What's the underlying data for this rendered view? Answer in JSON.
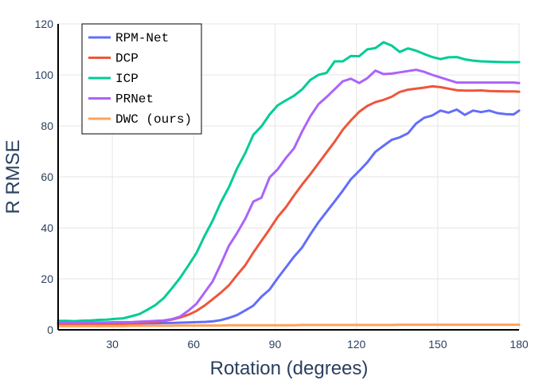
{
  "chart_data": {
    "type": "line",
    "xlabel": "Rotation (degrees)",
    "ylabel": "R RMSE",
    "xlim": [
      10,
      180
    ],
    "ylim": [
      0,
      120
    ],
    "xticks": [
      30,
      60,
      90,
      120,
      150,
      180
    ],
    "yticks": [
      0,
      20,
      40,
      60,
      80,
      100,
      120
    ],
    "grid": true,
    "legend_position": "top-left",
    "x": [
      10,
      13,
      16,
      19,
      22,
      25,
      28,
      31,
      34,
      37,
      40,
      43,
      46,
      49,
      52,
      55,
      58,
      61,
      64,
      67,
      70,
      73,
      76,
      79,
      82,
      85,
      88,
      91,
      94,
      97,
      100,
      103,
      106,
      109,
      112,
      115,
      118,
      121,
      124,
      127,
      130,
      133,
      136,
      139,
      142,
      145,
      148,
      151,
      154,
      157,
      160,
      163,
      166,
      169,
      172,
      175,
      178,
      180
    ],
    "series": [
      {
        "name": "RPM-Net",
        "color": "#636efa",
        "values": [
          2.5,
          2.4,
          2.4,
          2.4,
          2.4,
          2.4,
          2.5,
          2.5,
          2.5,
          2.5,
          2.5,
          2.6,
          2.6,
          2.7,
          2.7,
          2.8,
          2.9,
          3.0,
          3.1,
          3.3,
          3.8,
          4.7,
          5.8,
          7.6,
          9.5,
          13.0,
          15.8,
          20.3,
          24.5,
          28.7,
          32.3,
          37.4,
          42.2,
          46.3,
          50.4,
          54.6,
          59.1,
          62.3,
          65.7,
          69.8,
          72.2,
          74.5,
          75.5,
          77.1,
          80.9,
          83.2,
          84.1,
          86.0,
          85.2,
          86.4,
          84.3,
          86.0,
          85.4,
          86.0,
          85.0,
          84.6,
          84.5,
          86.0
        ]
      },
      {
        "name": "DCP",
        "color": "#ef553b",
        "values": [
          2.2,
          2.2,
          2.2,
          2.2,
          2.2,
          2.2,
          2.3,
          2.3,
          2.3,
          2.4,
          2.5,
          2.8,
          3.2,
          3.5,
          4.0,
          4.8,
          5.9,
          7.4,
          9.5,
          12.0,
          14.6,
          17.5,
          21.5,
          25.3,
          30.3,
          34.9,
          39.5,
          44.3,
          48.1,
          52.7,
          57.0,
          61.0,
          65.3,
          69.6,
          73.8,
          78.5,
          82.2,
          85.5,
          87.8,
          89.3,
          90.2,
          91.4,
          93.3,
          94.2,
          94.6,
          95.0,
          95.5,
          95.2,
          94.6,
          94.0,
          93.8,
          93.8,
          93.9,
          93.7,
          93.6,
          93.5,
          93.5,
          93.4
        ]
      },
      {
        "name": "ICP",
        "color": "#00cc96",
        "values": [
          3.5,
          3.5,
          3.4,
          3.6,
          3.7,
          3.9,
          4.0,
          4.3,
          4.5,
          5.3,
          6.2,
          7.9,
          9.8,
          12.5,
          16.3,
          20.4,
          25.2,
          30.1,
          36.8,
          42.8,
          50.0,
          56.0,
          63.3,
          69.3,
          76.5,
          79.8,
          84.5,
          88.1,
          90.0,
          91.8,
          94.3,
          98.0,
          100.0,
          100.8,
          105.3,
          105.3,
          107.4,
          107.3,
          110.0,
          110.5,
          112.8,
          111.5,
          109.0,
          110.4,
          109.5,
          108.2,
          107.0,
          106.2,
          106.9,
          107.0,
          106.1,
          105.6,
          105.3,
          105.2,
          105.1,
          105.0,
          105.0,
          105.0
        ]
      },
      {
        "name": "PRNet",
        "color": "#ab63fa",
        "values": [
          2.8,
          2.8,
          2.8,
          2.8,
          2.8,
          2.9,
          2.9,
          3.0,
          3.0,
          3.0,
          3.2,
          3.3,
          3.5,
          3.7,
          4.2,
          5.2,
          7.5,
          10.2,
          14.6,
          19.0,
          25.8,
          33.0,
          38.0,
          43.5,
          50.3,
          51.8,
          59.8,
          63.0,
          67.4,
          71.2,
          77.8,
          83.7,
          88.5,
          91.3,
          94.4,
          97.5,
          98.5,
          96.8,
          98.7,
          101.7,
          100.3,
          100.5,
          101.0,
          101.5,
          102.0,
          101.2,
          100.0,
          99.0,
          98.0,
          97.0,
          97.0,
          97.0,
          97.0,
          97.0,
          97.0,
          97.0,
          97.0,
          96.8
        ]
      },
      {
        "name": "DWC (ours)",
        "color": "#ffa15a",
        "values": [
          1.5,
          1.5,
          1.5,
          1.5,
          1.5,
          1.5,
          1.5,
          1.5,
          1.5,
          1.6,
          1.6,
          1.6,
          1.6,
          1.6,
          1.6,
          1.7,
          1.7,
          1.7,
          1.7,
          1.7,
          1.7,
          1.8,
          1.8,
          1.8,
          1.8,
          1.8,
          1.8,
          1.8,
          1.8,
          1.8,
          1.9,
          1.9,
          1.9,
          1.9,
          1.9,
          1.9,
          1.9,
          1.9,
          1.9,
          1.9,
          1.9,
          1.9,
          2.0,
          2.0,
          2.0,
          2.0,
          2.0,
          2.0,
          2.0,
          2.0,
          2.0,
          2.0,
          2.0,
          2.0,
          2.0,
          2.0,
          2.0,
          2.0
        ]
      }
    ]
  }
}
